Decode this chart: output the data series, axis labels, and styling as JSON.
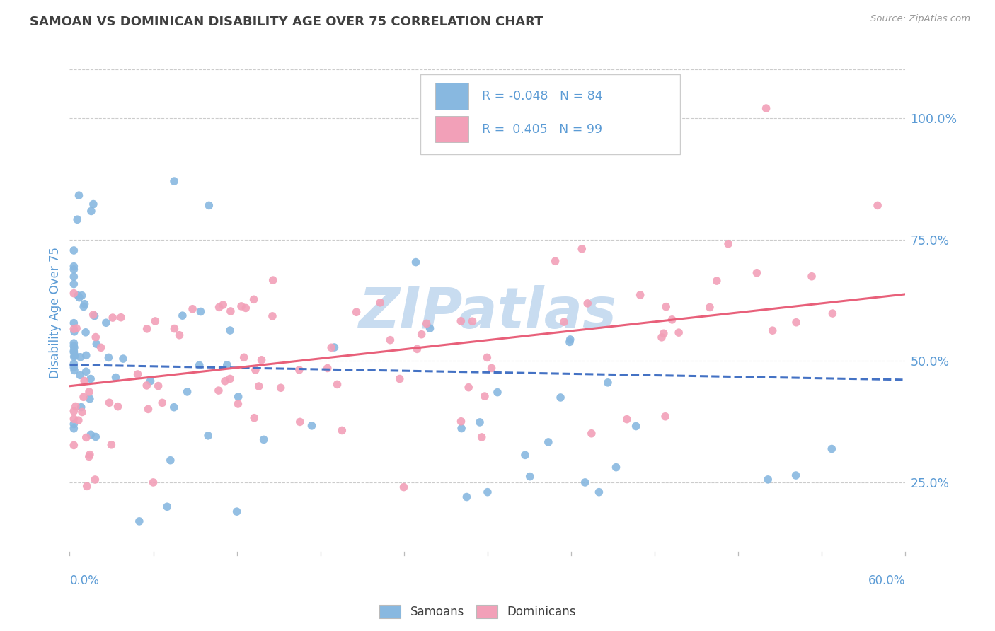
{
  "title": "SAMOAN VS DOMINICAN DISABILITY AGE OVER 75 CORRELATION CHART",
  "source_text": "Source: ZipAtlas.com",
  "xlim": [
    0.0,
    0.6
  ],
  "ylim": [
    0.1,
    1.1
  ],
  "ylabel_ticks": [
    0.25,
    0.5,
    0.75,
    1.0
  ],
  "ylabel_labels": [
    "25.0%",
    "50.0%",
    "75.0%",
    "100.0%"
  ],
  "x_tick_count": 11,
  "samoans_R": -0.048,
  "samoans_N": 84,
  "dominicans_R": 0.405,
  "dominicans_N": 99,
  "samoans_color": "#88B8E0",
  "dominicans_color": "#F2A0B8",
  "samoans_line_color": "#4472C4",
  "dominicans_line_color": "#E8607A",
  "title_color": "#404040",
  "axis_label_color": "#5B9BD5",
  "watermark_color": "#C8DCF0",
  "grid_color": "#CCCCCC",
  "background_color": "#FFFFFF",
  "source_color": "#999999",
  "legend_label_color": "#5B9BD5"
}
